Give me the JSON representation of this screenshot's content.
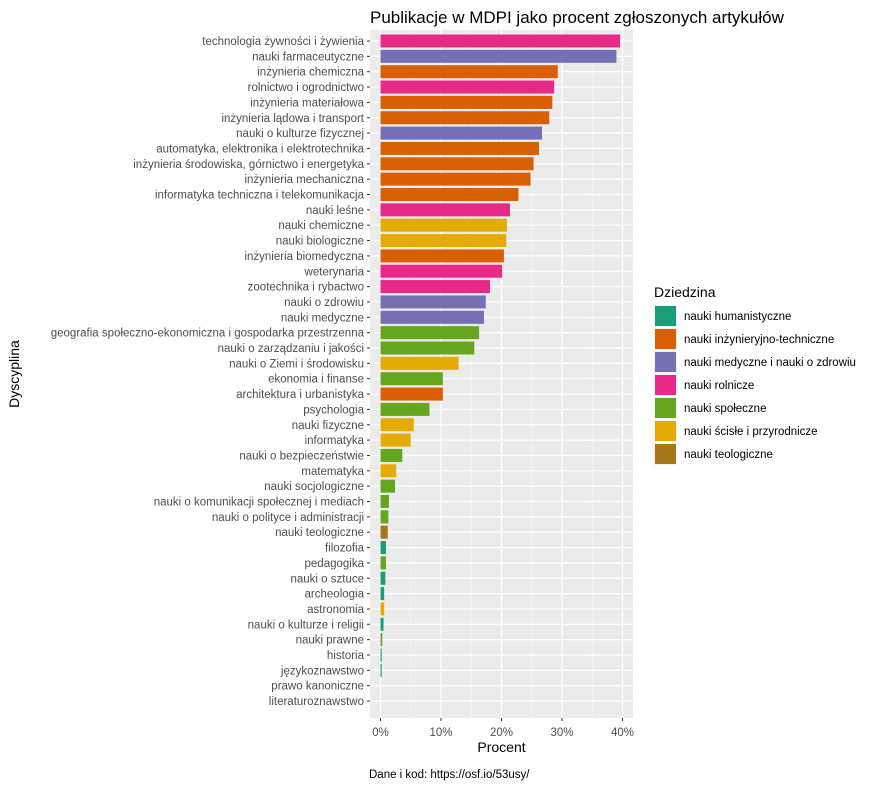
{
  "chart_data": {
    "type": "bar",
    "orientation": "horizontal",
    "title": "Publikacje w MDPI jako procent zgłoszonych artykułów",
    "xlabel": "Procent",
    "ylabel": "Dyscyplina",
    "caption": "Dane i kod: https://osf.io/53usy/",
    "xlim": [
      0,
      40
    ],
    "xticks": [
      {
        "value": 0,
        "label": "0%"
      },
      {
        "value": 10,
        "label": "10%"
      },
      {
        "value": 20,
        "label": "20%"
      },
      {
        "value": 30,
        "label": "30%"
      },
      {
        "value": 40,
        "label": "40%"
      }
    ],
    "grid": true,
    "legend": {
      "title": "Dziedzina",
      "position": "right",
      "items": [
        {
          "name": "nauki humanistyczne",
          "color": "#1B9E77"
        },
        {
          "name": "nauki inżynieryjno-techniczne",
          "color": "#D95F02"
        },
        {
          "name": "nauki medyczne i nauki o zdrowiu",
          "color": "#7570B3"
        },
        {
          "name": "nauki rolnicze",
          "color": "#E7298A"
        },
        {
          "name": "nauki społeczne",
          "color": "#66A61E"
        },
        {
          "name": "nauki ścisłe i przyrodnicze",
          "color": "#E6AB02"
        },
        {
          "name": "nauki teologiczne",
          "color": "#A6761D"
        }
      ]
    },
    "bars": [
      {
        "label": "technologia żywności i żywienia",
        "value": 39.6,
        "field": 3
      },
      {
        "label": "nauki farmaceutyczne",
        "value": 39.0,
        "field": 2
      },
      {
        "label": "inżynieria chemiczna",
        "value": 29.3,
        "field": 1
      },
      {
        "label": "rolnictwo i ogrodnictwo",
        "value": 28.7,
        "field": 3
      },
      {
        "label": "inżynieria materiałowa",
        "value": 28.4,
        "field": 1
      },
      {
        "label": "inżynieria lądowa i transport",
        "value": 27.9,
        "field": 1
      },
      {
        "label": "nauki o kulturze fizycznej",
        "value": 26.7,
        "field": 2
      },
      {
        "label": "automatyka, elektronika i elektrotechnika",
        "value": 26.2,
        "field": 1
      },
      {
        "label": "inżynieria środowiska, górnictwo i energetyka",
        "value": 25.3,
        "field": 1
      },
      {
        "label": "inżynieria mechaniczna",
        "value": 24.8,
        "field": 1
      },
      {
        "label": "informatyka techniczna i telekomunikacja",
        "value": 22.8,
        "field": 1
      },
      {
        "label": "nauki leśne",
        "value": 21.4,
        "field": 3
      },
      {
        "label": "nauki chemiczne",
        "value": 20.9,
        "field": 5
      },
      {
        "label": "nauki biologiczne",
        "value": 20.8,
        "field": 5
      },
      {
        "label": "inżynieria biomedyczna",
        "value": 20.4,
        "field": 1
      },
      {
        "label": "weterynaria",
        "value": 20.1,
        "field": 3
      },
      {
        "label": "zootechnika i rybactwo",
        "value": 18.1,
        "field": 3
      },
      {
        "label": "nauki o zdrowiu",
        "value": 17.4,
        "field": 2
      },
      {
        "label": "nauki medyczne",
        "value": 17.1,
        "field": 2
      },
      {
        "label": "geografia społeczno-ekonomiczna i gospodarka przestrzenna",
        "value": 16.3,
        "field": 4
      },
      {
        "label": "nauki o zarządzaniu i jakości",
        "value": 15.5,
        "field": 4
      },
      {
        "label": "nauki o Ziemi i środowisku",
        "value": 12.9,
        "field": 5
      },
      {
        "label": "ekonomia i finanse",
        "value": 10.3,
        "field": 4
      },
      {
        "label": "architektura i urbanistyka",
        "value": 10.3,
        "field": 1
      },
      {
        "label": "psychologia",
        "value": 8.1,
        "field": 4
      },
      {
        "label": "nauki fizyczne",
        "value": 5.5,
        "field": 5
      },
      {
        "label": "informatyka",
        "value": 5.0,
        "field": 5
      },
      {
        "label": "nauki o bezpieczeństwie",
        "value": 3.6,
        "field": 4
      },
      {
        "label": "matematyka",
        "value": 2.6,
        "field": 5
      },
      {
        "label": "nauki socjologiczne",
        "value": 2.4,
        "field": 4
      },
      {
        "label": "nauki o komunikacji społecznej i mediach",
        "value": 1.4,
        "field": 4
      },
      {
        "label": "nauki o polityce i administracji",
        "value": 1.3,
        "field": 4
      },
      {
        "label": "nauki teologiczne",
        "value": 1.2,
        "field": 6
      },
      {
        "label": "filozofia",
        "value": 0.9,
        "field": 0
      },
      {
        "label": "pedagogika",
        "value": 0.9,
        "field": 4
      },
      {
        "label": "nauki o sztuce",
        "value": 0.8,
        "field": 0
      },
      {
        "label": "archeologia",
        "value": 0.6,
        "field": 0
      },
      {
        "label": "astronomia",
        "value": 0.6,
        "field": 5
      },
      {
        "label": "nauki o kulturze i religii",
        "value": 0.5,
        "field": 0
      },
      {
        "label": "nauki prawne",
        "value": 0.3,
        "field": 4
      },
      {
        "label": "historia",
        "value": 0.2,
        "field": 0
      },
      {
        "label": "językoznawstwo",
        "value": 0.2,
        "field": 0
      },
      {
        "label": "prawo kanoniczne",
        "value": 0.0,
        "field": 6
      },
      {
        "label": "literaturoznawstwo",
        "value": 0.0,
        "field": 0
      }
    ]
  }
}
